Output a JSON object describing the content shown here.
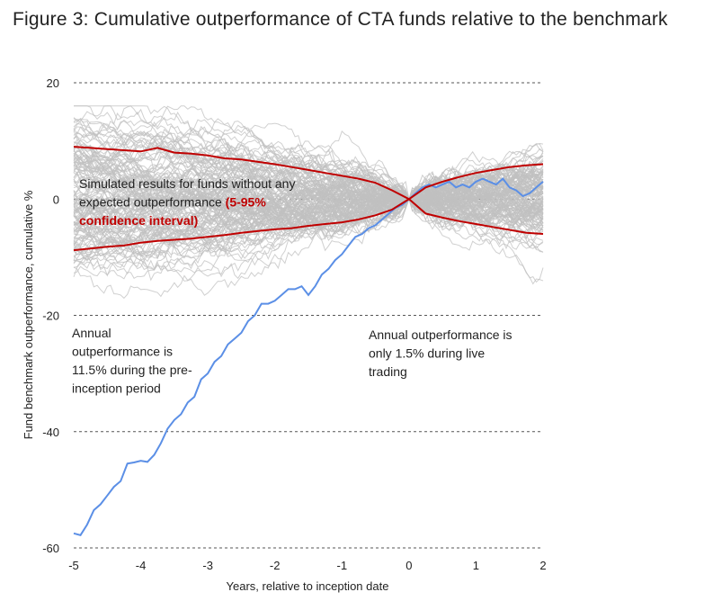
{
  "title": "Figure 3: Cumulative outperformance of CTA funds relative to the benchmark",
  "chart_data": {
    "type": "line",
    "xlabel": "Years, relative to inception date",
    "ylabel": "Fund benchmark outperformance, cumulative %",
    "xlim": [
      -5,
      2
    ],
    "ylim": [
      -60,
      20
    ],
    "xticks": [
      -5,
      -4,
      -3,
      -2,
      -1,
      0,
      1,
      2
    ],
    "yticks": [
      20,
      0,
      -20,
      -40,
      -60
    ],
    "grid": "horizontal dashed",
    "colors": {
      "simulated": "#c0c0c0",
      "confidence": "#c00000",
      "fund": "#5b8fe6"
    },
    "series": [
      {
        "key": "fund",
        "x": [
          -5,
          -4.9,
          -4.8,
          -4.7,
          -4.6,
          -4.5,
          -4.4,
          -4.3,
          -4.2,
          -4.1,
          -4.0,
          -3.9,
          -3.8,
          -3.7,
          -3.6,
          -3.5,
          -3.4,
          -3.3,
          -3.2,
          -3.1,
          -3.0,
          -2.9,
          -2.8,
          -2.7,
          -2.6,
          -2.5,
          -2.4,
          -2.3,
          -2.2,
          -2.1,
          -2.0,
          -1.9,
          -1.8,
          -1.7,
          -1.6,
          -1.5,
          -1.4,
          -1.3,
          -1.2,
          -1.1,
          -1.0,
          -0.9,
          -0.8,
          -0.7,
          -0.6,
          -0.5,
          -0.4,
          -0.3,
          -0.2,
          -0.1,
          0,
          0.1,
          0.2,
          0.3,
          0.4,
          0.5,
          0.6,
          0.7,
          0.8,
          0.9,
          1.0,
          1.1,
          1.2,
          1.3,
          1.4,
          1.5,
          1.6,
          1.7,
          1.8,
          1.9,
          2.0
        ],
        "values": [
          -57.5,
          -57.8,
          -56.0,
          -53.5,
          -52.5,
          -51.0,
          -49.5,
          -48.5,
          -45.5,
          -45.3,
          -45.0,
          -45.2,
          -44.0,
          -42.0,
          -39.5,
          -38.0,
          -37.0,
          -35.0,
          -34.0,
          -31.0,
          -30.0,
          -28.0,
          -27.0,
          -25.0,
          -24.0,
          -23.0,
          -21.0,
          -20.0,
          -18.0,
          -18.0,
          -17.5,
          -16.5,
          -15.5,
          -15.5,
          -15.0,
          -16.5,
          -15.0,
          -13.0,
          -12.0,
          -10.5,
          -9.5,
          -8.0,
          -6.5,
          -6.0,
          -5.0,
          -4.5,
          -3.5,
          -2.5,
          -1.5,
          -1.0,
          0,
          1.0,
          2.0,
          2.5,
          2.0,
          2.5,
          3.0,
          2.0,
          2.5,
          2.0,
          3.0,
          3.5,
          3.0,
          2.5,
          3.5,
          2.0,
          1.5,
          0.5,
          1.0,
          2.0,
          3.0
        ]
      },
      {
        "key": "upper",
        "x": [
          -5,
          -4.75,
          -4.5,
          -4.25,
          -4.0,
          -3.75,
          -3.5,
          -3.25,
          -3.0,
          -2.75,
          -2.5,
          -2.25,
          -2.0,
          -1.75,
          -1.5,
          -1.25,
          -1.0,
          -0.75,
          -0.5,
          -0.25,
          0,
          0.25,
          0.5,
          0.75,
          1.0,
          1.25,
          1.5,
          1.75,
          2.0
        ],
        "values": [
          9.0,
          8.8,
          8.6,
          8.4,
          8.2,
          8.8,
          8.0,
          7.8,
          7.5,
          7.0,
          6.8,
          6.4,
          6.0,
          5.5,
          5.0,
          4.5,
          4.0,
          3.5,
          2.8,
          1.5,
          0,
          2.0,
          3.0,
          3.8,
          4.5,
          5.0,
          5.5,
          5.8,
          6.0
        ]
      },
      {
        "key": "lower",
        "x": [
          -5,
          -4.75,
          -4.5,
          -4.25,
          -4.0,
          -3.75,
          -3.5,
          -3.25,
          -3.0,
          -2.75,
          -2.5,
          -2.25,
          -2.0,
          -1.75,
          -1.5,
          -1.25,
          -1.0,
          -0.75,
          -0.5,
          -0.25,
          0,
          0.25,
          0.5,
          0.75,
          1.0,
          1.25,
          1.5,
          1.75,
          2.0
        ],
        "values": [
          -8.8,
          -8.5,
          -8.2,
          -8.0,
          -7.5,
          -7.2,
          -7.0,
          -6.8,
          -6.5,
          -6.2,
          -5.8,
          -5.5,
          -5.2,
          -5.0,
          -4.6,
          -4.3,
          -4.0,
          -3.5,
          -2.8,
          -1.8,
          0,
          -2.5,
          -3.2,
          -3.8,
          -4.3,
          -4.8,
          -5.3,
          -5.8,
          -6.0
        ]
      }
    ],
    "annotations": [
      {
        "key": "simulated",
        "lines": [
          "Simulated results for funds without any",
          "expected outperformance "
        ],
        "highlight": [
          "(5-95%",
          "confidence interval)"
        ]
      },
      {
        "key": "pre",
        "lines": [
          "Annual",
          "outperformance is",
          "11.5% during the pre-",
          "inception period"
        ]
      },
      {
        "key": "live",
        "lines": [
          "Annual outperformance is",
          "only 1.5% during live",
          "trading"
        ]
      }
    ]
  }
}
